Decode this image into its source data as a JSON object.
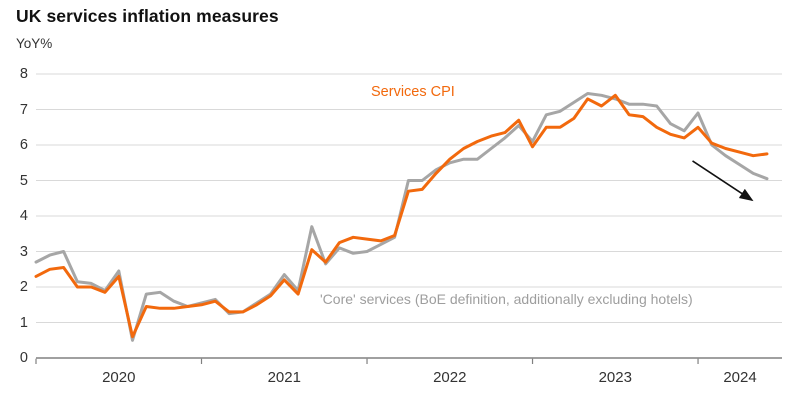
{
  "header": {
    "title": "UK services inflation measures",
    "unit_label": "YoY%"
  },
  "labels": {
    "services_cpi": "Services CPI",
    "core_services": "'Core' services (BoE definition, additionally excluding hotels)"
  },
  "chart_data": {
    "type": "line",
    "title": "UK services inflation measures",
    "ylabel": "YoY%",
    "x_start": "2020-01",
    "x_end": "2024-06",
    "frequency": "monthly",
    "year_ticks": [
      "2020",
      "2021",
      "2022",
      "2023",
      "2024"
    ],
    "ylim": [
      0,
      8
    ],
    "y_ticks": [
      0,
      1,
      2,
      3,
      4,
      5,
      6,
      7,
      8
    ],
    "grid": "horizontal",
    "legend_position": "inline-labels",
    "series": [
      {
        "id": "core-services",
        "name": "'Core' services (BoE definition, additionally excluding hotels)",
        "color": "#A6A6A6",
        "values": [
          2.7,
          2.9,
          3.0,
          2.15,
          2.1,
          1.9,
          2.45,
          0.5,
          1.8,
          1.85,
          1.6,
          1.45,
          1.55,
          1.65,
          1.25,
          1.3,
          1.55,
          1.8,
          2.35,
          1.9,
          3.7,
          2.65,
          3.1,
          2.95,
          3.0,
          3.2,
          3.4,
          5.0,
          5.0,
          5.3,
          5.5,
          5.6,
          5.6,
          5.9,
          6.2,
          6.55,
          6.1,
          6.85,
          6.95,
          7.2,
          7.45,
          7.4,
          7.3,
          7.15,
          7.15,
          7.1,
          6.6,
          6.4,
          6.9,
          6.0,
          5.7,
          5.45,
          5.2,
          5.05
        ]
      },
      {
        "id": "services-cpi",
        "name": "Services CPI",
        "color": "#F2690D",
        "values": [
          2.3,
          2.5,
          2.55,
          2.0,
          2.0,
          1.85,
          2.3,
          0.6,
          1.45,
          1.4,
          1.4,
          1.45,
          1.5,
          1.6,
          1.3,
          1.3,
          1.5,
          1.75,
          2.2,
          1.8,
          3.05,
          2.7,
          3.25,
          3.4,
          3.35,
          3.3,
          3.45,
          4.7,
          4.75,
          5.2,
          5.6,
          5.9,
          6.1,
          6.25,
          6.35,
          6.7,
          5.95,
          6.5,
          6.5,
          6.75,
          7.3,
          7.1,
          7.4,
          6.85,
          6.8,
          6.5,
          6.3,
          6.2,
          6.5,
          6.05,
          5.9,
          5.8,
          5.7,
          5.75
        ]
      }
    ],
    "annotations": {
      "arrow": {
        "from_month": 47.6,
        "from_value": 5.55,
        "to_month": 51.9,
        "to_value": 4.45
      }
    },
    "colors": {
      "grid": "#D9D9D9",
      "axis": "#808080",
      "tick_text": "#333333",
      "annotation_arrow": "#111111"
    }
  }
}
